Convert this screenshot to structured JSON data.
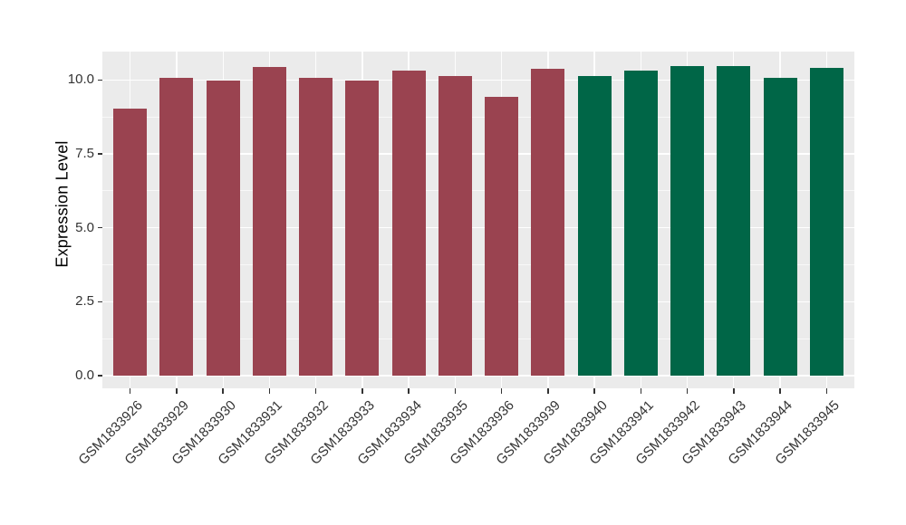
{
  "figure": {
    "ylabel": "Expression Level"
  },
  "chart_data": {
    "type": "bar",
    "title": "",
    "xlabel": "",
    "ylabel": "Expression Level",
    "categories": [
      "GSM1833926",
      "GSM1833929",
      "GSM1833930",
      "GSM1833931",
      "GSM1833932",
      "GSM1833933",
      "GSM1833934",
      "GSM1833935",
      "GSM1833936",
      "GSM1833939",
      "GSM1833940",
      "GSM1833941",
      "GSM1833942",
      "GSM1833943",
      "GSM1833944",
      "GSM1833945"
    ],
    "values": [
      9.04,
      10.08,
      9.97,
      10.43,
      10.08,
      9.98,
      10.31,
      10.15,
      9.44,
      10.39,
      10.12,
      10.32,
      10.47,
      10.48,
      10.06,
      10.4
    ],
    "bar_colors": [
      "#9A4350",
      "#9A4350",
      "#9A4350",
      "#9A4350",
      "#9A4350",
      "#9A4350",
      "#9A4350",
      "#9A4350",
      "#9A4350",
      "#9A4350",
      "#006647",
      "#006647",
      "#006647",
      "#006647",
      "#006647",
      "#006647"
    ],
    "palette": {
      "maroon": "#9A4350",
      "green": "#006647"
    },
    "ytick_labels": [
      "0.0",
      "2.5",
      "5.0",
      "7.5",
      "10.0"
    ],
    "yticks": [
      0,
      2.5,
      5,
      7.5,
      10
    ],
    "minor_yticks": [
      1.25,
      3.75,
      6.25,
      8.75
    ],
    "ylim": [
      -0.43,
      10.96
    ],
    "grid": "horizontal major+minor white lines, vertical white line at each category center",
    "legend_position": "none",
    "panel_bg": "#EBEBEB",
    "grid_color": "#FFFFFF",
    "axis_text_color": "#333333",
    "axis_title_color": "#000000",
    "background": "#FFFFFF"
  }
}
